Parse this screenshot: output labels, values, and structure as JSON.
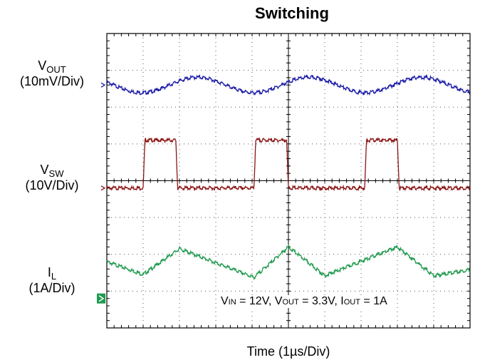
{
  "title": "Switching",
  "xlabel": "Time (1µs/Div)",
  "channels": [
    {
      "name_main": "V",
      "name_sub": "OUT",
      "scale": "(10mV/Div)",
      "color": "#1c1ca8"
    },
    {
      "name_main": "V",
      "name_sub": "SW",
      "scale": "(10V/Div)",
      "color": "#8b1414"
    },
    {
      "name_main": "I",
      "name_sub": "L",
      "scale": "(1A/Div)",
      "color": "#1f9a4e"
    }
  ],
  "conditions": {
    "vin_main": "V",
    "vin_sub": "IN",
    "vin_val": " = 12V, ",
    "vout_main": "V",
    "vout_sub": "OUT",
    "vout_val": " = 3.3V, ",
    "iout_main": "I",
    "iout_sub": "OUT",
    "iout_val": " = 1A"
  },
  "chart_data": {
    "type": "line",
    "title": "Switching",
    "xlabel": "Time (1µs/Div)",
    "x_divisions": 10,
    "y_divisions": 8,
    "grid": true,
    "x_unit": "µs",
    "series": [
      {
        "name": "VOUT",
        "scale": "10mV/Div",
        "x": [
          0,
          0.6,
          1.0,
          1.5,
          2.0,
          2.5,
          3.0,
          3.6,
          4.0,
          4.5,
          5.0,
          5.5,
          6.0,
          6.6,
          7.0,
          7.5,
          8.0,
          8.5,
          9.0,
          9.6,
          10.0
        ],
        "y": [
          0.0,
          -0.14,
          -0.2,
          -0.08,
          0.12,
          0.22,
          0.14,
          -0.14,
          -0.2,
          -0.08,
          0.12,
          0.22,
          0.14,
          -0.14,
          -0.2,
          -0.08,
          0.12,
          0.22,
          0.14,
          -0.14,
          -0.2
        ]
      },
      {
        "name": "VSW",
        "scale": "10V/Div",
        "x": [
          0,
          1.0,
          1.05,
          1.9,
          1.95,
          4.05,
          4.1,
          4.95,
          5.0,
          7.1,
          7.15,
          8.0,
          8.05,
          10.0
        ],
        "y": [
          0,
          0,
          1.3,
          1.3,
          0,
          0,
          1.3,
          1.3,
          0,
          0,
          1.3,
          1.3,
          0,
          0
        ]
      },
      {
        "name": "IL",
        "scale": "1A/Div",
        "x": [
          0,
          1.0,
          2.0,
          4.05,
          5.0,
          6.0,
          8.0,
          9.0,
          10.0
        ],
        "y": [
          1.0,
          0.65,
          1.35,
          0.57,
          1.4,
          0.62,
          1.4,
          0.62,
          0.78
        ]
      }
    ]
  }
}
